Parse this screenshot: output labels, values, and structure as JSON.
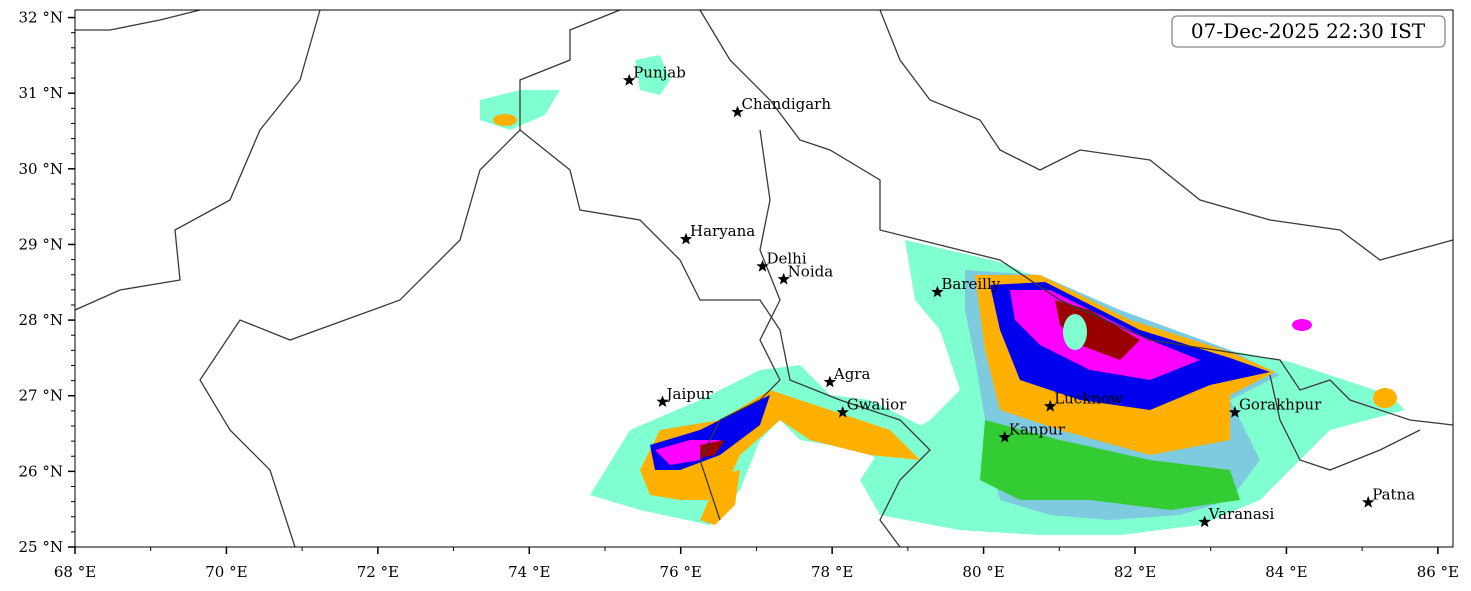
{
  "timestamp": "07-Dec-2025 22:30 IST",
  "xlim": [
    68,
    86.2
  ],
  "ylim": [
    25,
    32.1
  ],
  "xticks": [
    {
      "value": 68,
      "label": "68 °E"
    },
    {
      "value": 70,
      "label": "70 °E"
    },
    {
      "value": 72,
      "label": "72 °E"
    },
    {
      "value": 74,
      "label": "74 °E"
    },
    {
      "value": 76,
      "label": "76 °E"
    },
    {
      "value": 78,
      "label": "78 °E"
    },
    {
      "value": 80,
      "label": "80 °E"
    },
    {
      "value": 82,
      "label": "82 °E"
    },
    {
      "value": 84,
      "label": "84 °E"
    },
    {
      "value": 86,
      "label": "86 °E"
    }
  ],
  "yticks": [
    {
      "value": 25,
      "label": "25 °N"
    },
    {
      "value": 26,
      "label": "26 °N"
    },
    {
      "value": 27,
      "label": "27 °N"
    },
    {
      "value": 28,
      "label": "28 °N"
    },
    {
      "value": 29,
      "label": "29 °N"
    },
    {
      "value": 30,
      "label": "30 °N"
    },
    {
      "value": 31,
      "label": "31 °N"
    },
    {
      "value": 32,
      "label": "32 °N"
    }
  ],
  "xminor": [
    69,
    71,
    73,
    75,
    77,
    79,
    81,
    83,
    85
  ],
  "yminor": [
    25.2,
    25.4,
    25.6,
    25.8,
    26.2,
    26.4,
    26.6,
    26.8,
    27.2,
    27.4,
    27.6,
    27.8,
    28.2,
    28.4,
    28.6,
    28.8,
    29.2,
    29.4,
    29.6,
    29.8,
    30.2,
    30.4,
    30.6,
    30.8,
    31.2,
    31.4,
    31.6,
    31.8
  ],
  "cities": [
    {
      "name": "Punjab",
      "lon": 75.32,
      "lat": 31.17
    },
    {
      "name": "Chandigarh",
      "lon": 76.75,
      "lat": 30.75
    },
    {
      "name": "Haryana",
      "lon": 76.07,
      "lat": 29.07
    },
    {
      "name": "Delhi",
      "lon": 77.08,
      "lat": 28.71
    },
    {
      "name": "Noida",
      "lon": 77.36,
      "lat": 28.54
    },
    {
      "name": "Bareilly",
      "lon": 79.39,
      "lat": 28.37
    },
    {
      "name": "Agra",
      "lon": 77.97,
      "lat": 27.18
    },
    {
      "name": "Jaipur",
      "lon": 75.76,
      "lat": 26.92
    },
    {
      "name": "Gwalior",
      "lon": 78.14,
      "lat": 26.78
    },
    {
      "name": "Lucknow",
      "lon": 80.88,
      "lat": 26.86
    },
    {
      "name": "Gorakhpur",
      "lon": 83.32,
      "lat": 26.78
    },
    {
      "name": "Kanpur",
      "lon": 80.28,
      "lat": 26.45
    },
    {
      "name": "Patna",
      "lon": 85.08,
      "lat": 25.59
    },
    {
      "name": "Varanasi",
      "lon": 82.92,
      "lat": 25.33
    }
  ]
}
